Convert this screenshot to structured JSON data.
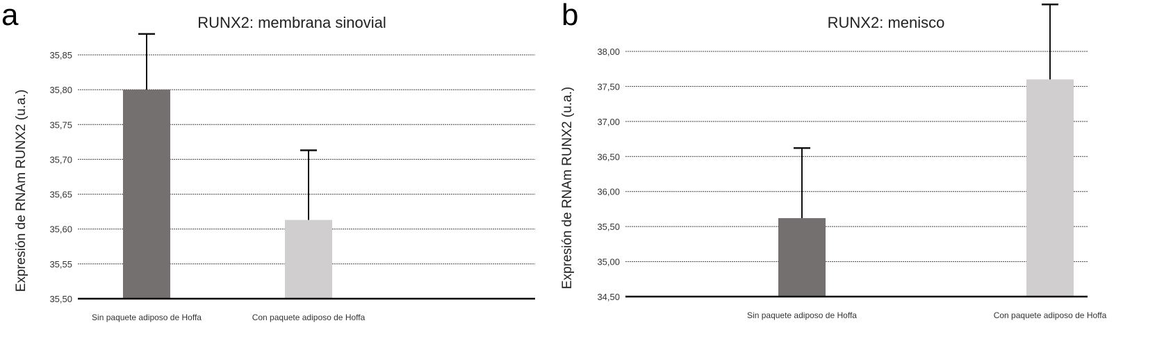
{
  "chart_data": [
    {
      "type": "bar",
      "panel": "a",
      "title": "RUNX2: membrana sinovial",
      "ylabel": "Expresión de RNAm RUNX2 (u.a.)",
      "xlabel": "",
      "categories": [
        "Sin paquete adiposo de Hoffa",
        "Con paquete adiposo de Hoffa"
      ],
      "values": [
        35.8,
        35.613
      ],
      "error_upper": [
        0.08,
        0.1
      ],
      "ylim": [
        35.5,
        35.88
      ],
      "yticks": [
        "35,50",
        "35,55",
        "35,60",
        "35,65",
        "35,70",
        "35,75",
        "35,80",
        "35,85"
      ],
      "ytick_values": [
        35.5,
        35.55,
        35.6,
        35.65,
        35.7,
        35.75,
        35.8,
        35.85
      ],
      "grid": true,
      "colors": [
        "#757070",
        "#d0cece"
      ]
    },
    {
      "type": "bar",
      "panel": "b",
      "title": "RUNX2: menisco",
      "ylabel": "Expresión de RNAm RUNX2 (u.a.)",
      "xlabel": "",
      "categories": [
        "Sin paquete adiposo de Hoffa",
        "Con paquete adiposo de Hoffa"
      ],
      "values": [
        35.62,
        37.6
      ],
      "error_upper": [
        1.0,
        1.07
      ],
      "ylim": [
        34.5,
        38.0
      ],
      "yticks": [
        "34,50",
        "35,00",
        "35,50",
        "36,00",
        "36,50",
        "37,00",
        "37,50",
        "38,00"
      ],
      "ytick_values": [
        34.5,
        35.0,
        35.5,
        36.0,
        36.5,
        37.0,
        37.5,
        38.0
      ],
      "grid": true,
      "colors": [
        "#757070",
        "#d0cece"
      ]
    }
  ]
}
